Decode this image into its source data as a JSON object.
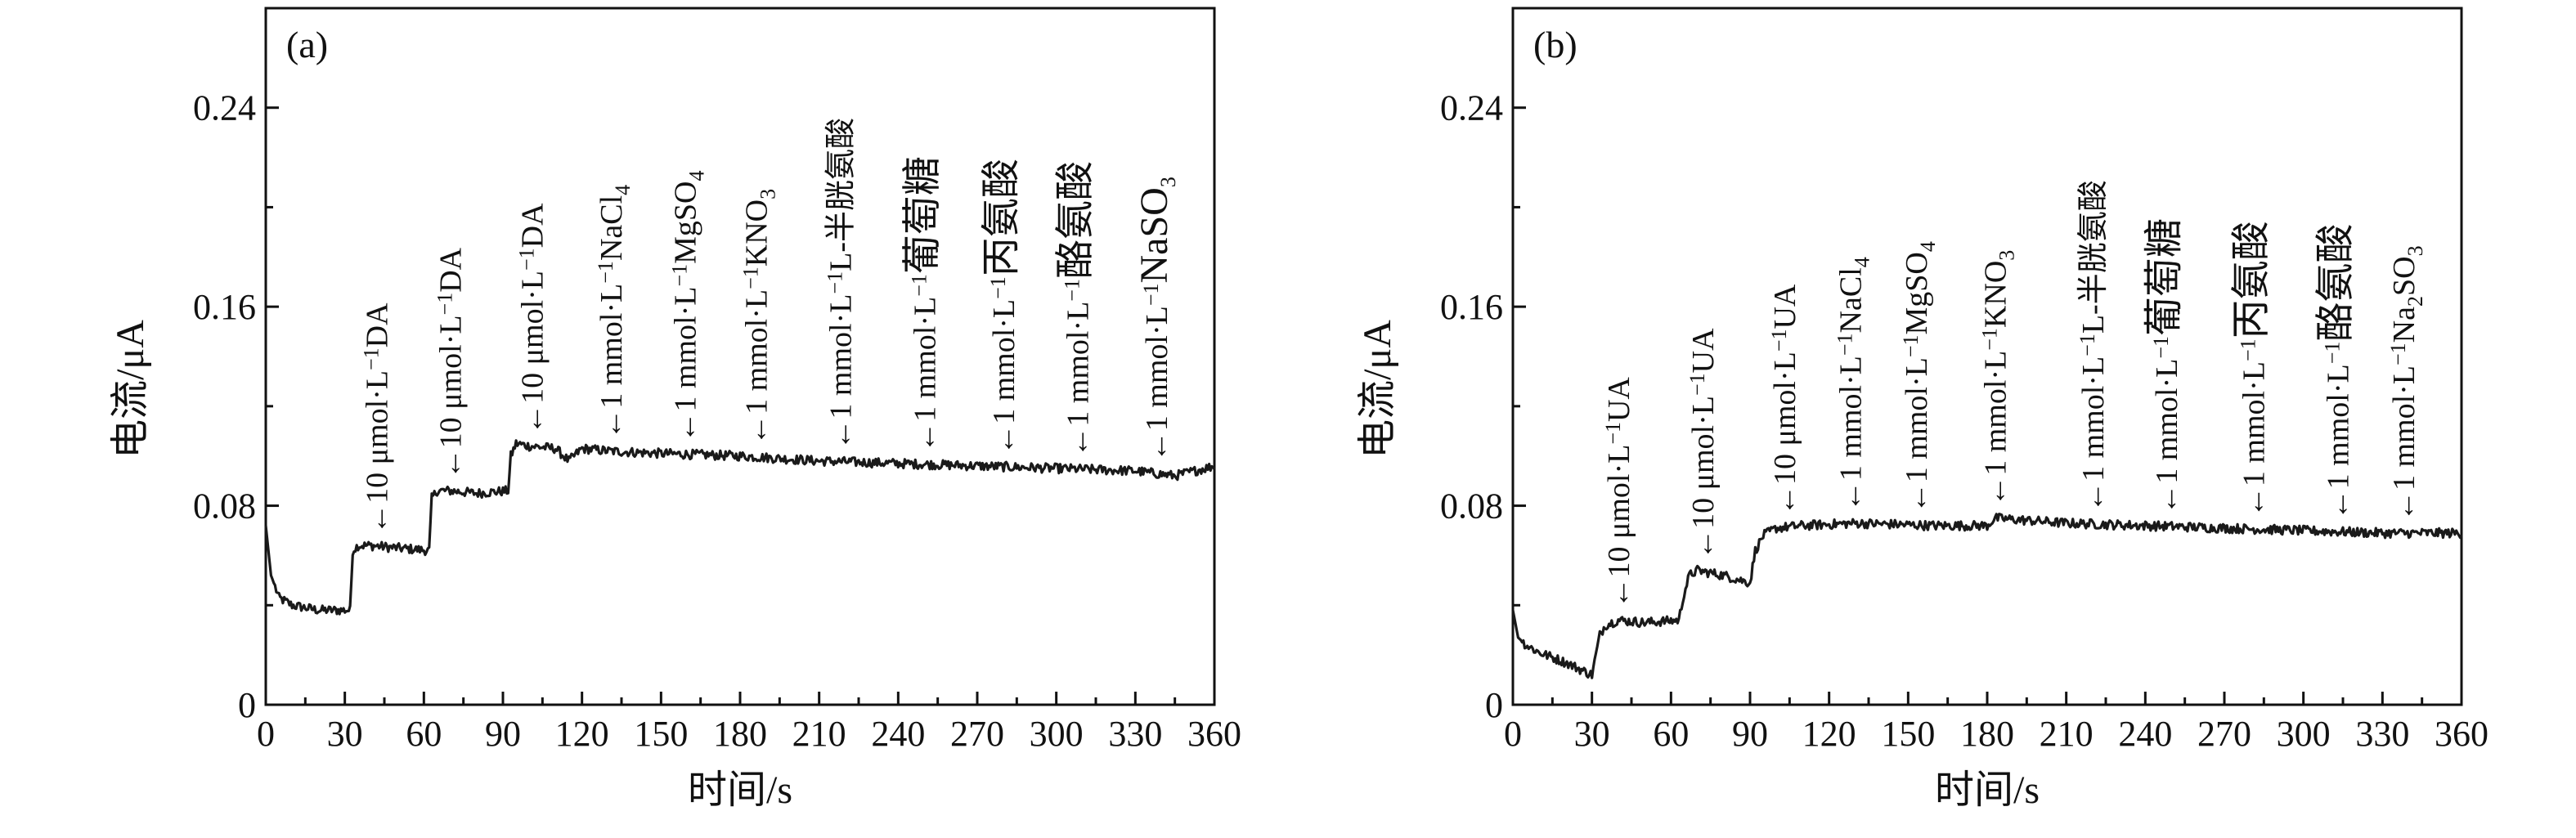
{
  "chart_data": [
    {
      "type": "line",
      "panel_label": "(a)",
      "xlabel": "时间/s",
      "ylabel": "电流/μA",
      "xlim": [
        0,
        360
      ],
      "ylim": [
        0,
        0.28
      ],
      "xticks": [
        "0",
        "30",
        "60",
        "90",
        "120",
        "150",
        "180",
        "210",
        "240",
        "270",
        "300",
        "330",
        "360"
      ],
      "yticks": [
        "0",
        "0.08",
        "0.16",
        "0.24"
      ],
      "x": [
        0,
        2,
        5,
        10,
        20,
        32,
        33,
        35,
        40,
        50,
        62,
        63,
        65,
        70,
        80,
        92,
        93,
        95,
        100,
        110,
        115,
        120,
        130,
        150,
        180,
        210,
        240,
        270,
        300,
        330,
        345,
        360
      ],
      "y": [
        0.072,
        0.052,
        0.043,
        0.04,
        0.038,
        0.038,
        0.062,
        0.064,
        0.064,
        0.063,
        0.062,
        0.083,
        0.086,
        0.086,
        0.085,
        0.086,
        0.1,
        0.105,
        0.104,
        0.103,
        0.098,
        0.103,
        0.102,
        0.101,
        0.1,
        0.098,
        0.097,
        0.096,
        0.095,
        0.094,
        0.092,
        0.096
      ],
      "annotations": [
        {
          "t": 42,
          "parts": [
            {
              "s": "←10 μmol·L"
            },
            {
              "s": "−1",
              "sup": true
            },
            {
              "s": "DA"
            }
          ]
        },
        {
          "t": 70,
          "parts": [
            {
              "s": "←10 μmol·L"
            },
            {
              "s": "−1",
              "sup": true
            },
            {
              "s": "DA"
            }
          ]
        },
        {
          "t": 101,
          "parts": [
            {
              "s": "←10 μmol·L"
            },
            {
              "s": "−1",
              "sup": true
            },
            {
              "s": "DA"
            }
          ]
        },
        {
          "t": 131,
          "parts": [
            {
              "s": "←1 mmol·L"
            },
            {
              "s": "−1",
              "sup": true
            },
            {
              "s": "NaCl"
            },
            {
              "s": "4",
              "sub": true
            }
          ]
        },
        {
          "t": 159,
          "parts": [
            {
              "s": "←1 mmol·L"
            },
            {
              "s": "−1",
              "sup": true
            },
            {
              "s": "MgSO"
            },
            {
              "s": "4",
              "sub": true
            }
          ]
        },
        {
          "t": 186,
          "parts": [
            {
              "s": "←1 mmol·L"
            },
            {
              "s": "−1",
              "sup": true
            },
            {
              "s": "KNO"
            },
            {
              "s": "3",
              "sub": true
            }
          ]
        },
        {
          "t": 218,
          "parts": [
            {
              "s": "←1 mmol·L"
            },
            {
              "s": "−1",
              "sup": true
            },
            {
              "s": "L-半胱氨酸"
            }
          ]
        },
        {
          "t": 250,
          "parts": [
            {
              "s": "←1 mmol·L"
            },
            {
              "s": "−1",
              "sup": true
            },
            {
              "s": "葡萄糖",
              "big": true
            }
          ]
        },
        {
          "t": 280,
          "parts": [
            {
              "s": "←1 mmol·L"
            },
            {
              "s": "−1",
              "sup": true
            },
            {
              "s": "丙氨酸",
              "big": true
            }
          ]
        },
        {
          "t": 308,
          "parts": [
            {
              "s": "←1 mmol·L"
            },
            {
              "s": "−1",
              "sup": true
            },
            {
              "s": "酪氨酸",
              "big": true
            }
          ]
        },
        {
          "t": 338,
          "parts": [
            {
              "s": "←1 mmol·L"
            },
            {
              "s": "−1",
              "sup": true
            },
            {
              "s": "NaSO",
              "big": true
            },
            {
              "s": "3",
              "sub": true
            }
          ]
        }
      ]
    },
    {
      "type": "line",
      "panel_label": "(b)",
      "xlabel": "时间/s",
      "ylabel": "电流/μA",
      "xlim": [
        0,
        360
      ],
      "ylim": [
        0,
        0.28
      ],
      "xticks": [
        "0",
        "30",
        "60",
        "90",
        "120",
        "150",
        "180",
        "210",
        "240",
        "270",
        "300",
        "330",
        "360"
      ],
      "yticks": [
        "0",
        "0.08",
        "0.16",
        "0.24"
      ],
      "x": [
        0,
        2,
        5,
        10,
        20,
        30,
        33,
        35,
        40,
        50,
        63,
        65,
        67,
        70,
        80,
        90,
        92,
        95,
        100,
        110,
        130,
        160,
        180,
        183,
        210,
        240,
        270,
        300,
        330,
        360
      ],
      "y": [
        0.038,
        0.027,
        0.024,
        0.021,
        0.017,
        0.012,
        0.028,
        0.032,
        0.034,
        0.033,
        0.034,
        0.045,
        0.052,
        0.054,
        0.052,
        0.049,
        0.062,
        0.068,
        0.071,
        0.072,
        0.073,
        0.072,
        0.072,
        0.075,
        0.073,
        0.072,
        0.071,
        0.07,
        0.069,
        0.069
      ],
      "annotations": [
        {
          "t": 40,
          "parts": [
            {
              "s": "←10 μmol·L"
            },
            {
              "s": "−1",
              "sup": true
            },
            {
              "s": "UA"
            }
          ]
        },
        {
          "t": 72,
          "parts": [
            {
              "s": "←10 μmol·L"
            },
            {
              "s": "−1",
              "sup": true
            },
            {
              "s": "UA"
            }
          ]
        },
        {
          "t": 103,
          "parts": [
            {
              "s": "←10 μmol·L"
            },
            {
              "s": "−1",
              "sup": true
            },
            {
              "s": "UA"
            }
          ]
        },
        {
          "t": 128,
          "parts": [
            {
              "s": "←1 mmol·L"
            },
            {
              "s": "−1",
              "sup": true
            },
            {
              "s": "NaCl"
            },
            {
              "s": "4",
              "sub": true
            }
          ]
        },
        {
          "t": 153,
          "parts": [
            {
              "s": "←1 mmol·L"
            },
            {
              "s": "−1",
              "sup": true
            },
            {
              "s": "MgSO"
            },
            {
              "s": "4",
              "sub": true
            }
          ]
        },
        {
          "t": 183,
          "parts": [
            {
              "s": "←1 mmol·L"
            },
            {
              "s": "−1",
              "sup": true
            },
            {
              "s": "KNO"
            },
            {
              "s": "3",
              "sub": true
            }
          ]
        },
        {
          "t": 220,
          "parts": [
            {
              "s": "←1 mmol·L"
            },
            {
              "s": "−1",
              "sup": true
            },
            {
              "s": "L-半胱氨酸"
            }
          ]
        },
        {
          "t": 248,
          "parts": [
            {
              "s": "←1 mmol·L"
            },
            {
              "s": "−1",
              "sup": true
            },
            {
              "s": "葡萄糖",
              "big": true
            }
          ]
        },
        {
          "t": 281,
          "parts": [
            {
              "s": "←1 mmol·L"
            },
            {
              "s": "−1",
              "sup": true
            },
            {
              "s": "丙氨酸",
              "big": true
            }
          ]
        },
        {
          "t": 313,
          "parts": [
            {
              "s": "←1 mmol·L"
            },
            {
              "s": "−1",
              "sup": true
            },
            {
              "s": "酪氨酸",
              "big": true
            }
          ]
        },
        {
          "t": 338,
          "parts": [
            {
              "s": "←1 mmol·L"
            },
            {
              "s": "−1",
              "sup": true
            },
            {
              "s": "Na"
            },
            {
              "s": "2",
              "sub": true
            },
            {
              "s": "SO"
            },
            {
              "s": "3",
              "sub": true
            }
          ]
        }
      ]
    }
  ]
}
